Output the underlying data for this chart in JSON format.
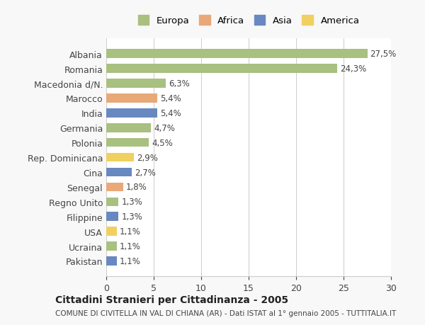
{
  "categories": [
    "Albania",
    "Romania",
    "Macedonia d/N.",
    "Marocco",
    "India",
    "Germania",
    "Polonia",
    "Rep. Dominicana",
    "Cina",
    "Senegal",
    "Regno Unito",
    "Filippine",
    "USA",
    "Ucraina",
    "Pakistan"
  ],
  "values": [
    27.5,
    24.3,
    6.3,
    5.4,
    5.4,
    4.7,
    4.5,
    2.9,
    2.7,
    1.8,
    1.3,
    1.3,
    1.1,
    1.1,
    1.1
  ],
  "labels": [
    "27,5%",
    "24,3%",
    "6,3%",
    "5,4%",
    "5,4%",
    "4,7%",
    "4,5%",
    "2,9%",
    "2,7%",
    "1,8%",
    "1,3%",
    "1,3%",
    "1,1%",
    "1,1%",
    "1,1%"
  ],
  "colors": [
    "#a8c080",
    "#a8c080",
    "#a8c080",
    "#e8a878",
    "#6888c0",
    "#a8c080",
    "#a8c080",
    "#f0d060",
    "#6888c0",
    "#e8a878",
    "#a8c080",
    "#6888c0",
    "#f0d060",
    "#a8c080",
    "#6888c0"
  ],
  "continent": [
    "Europa",
    "Europa",
    "Europa",
    "Africa",
    "Asia",
    "Europa",
    "Europa",
    "America",
    "Asia",
    "Africa",
    "Europa",
    "Asia",
    "America",
    "Europa",
    "Asia"
  ],
  "legend_labels": [
    "Europa",
    "Africa",
    "Asia",
    "America"
  ],
  "legend_colors": [
    "#a8c080",
    "#e8a878",
    "#6888c0",
    "#f0d060"
  ],
  "title": "Cittadini Stranieri per Cittadinanza - 2005",
  "subtitle": "COMUNE DI CIVITELLA IN VAL DI CHIANA (AR) - Dati ISTAT al 1° gennaio 2005 - TUTTITALIA.IT",
  "xlim": [
    0,
    30
  ],
  "xticks": [
    0,
    5,
    10,
    15,
    20,
    25,
    30
  ],
  "background_color": "#f8f8f8",
  "bar_background": "#ffffff"
}
